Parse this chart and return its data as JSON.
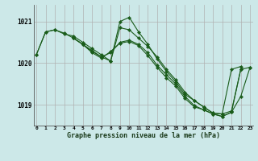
{
  "title": "Graphe pression niveau de la mer (hPa)",
  "bg_color": "#cce8e8",
  "grid_color": "#b0b0b0",
  "line_color": "#1a5c1a",
  "marker_color": "#1a5c1a",
  "xlim": [
    -0.3,
    23.3
  ],
  "ylim": [
    1018.5,
    1021.4
  ],
  "yticks": [
    1019,
    1020,
    1021
  ],
  "xticks": [
    0,
    1,
    2,
    3,
    4,
    5,
    6,
    7,
    8,
    9,
    10,
    11,
    12,
    13,
    14,
    15,
    16,
    17,
    18,
    19,
    20,
    21,
    22,
    23
  ],
  "series": [
    {
      "x": [
        0,
        1,
        2,
        3,
        4,
        5,
        6,
        7,
        8,
        9,
        10,
        11,
        12,
        13,
        14,
        15,
        16,
        17,
        18,
        19,
        20,
        21,
        22
      ],
      "y": [
        1020.2,
        1020.75,
        1020.8,
        1020.7,
        1020.65,
        1020.5,
        1020.35,
        1020.2,
        1020.05,
        1021.0,
        1021.1,
        1020.75,
        1020.45,
        1020.1,
        1019.8,
        1019.55,
        1019.25,
        1019.1,
        1018.95,
        1018.8,
        1018.78,
        1018.85,
        1019.85
      ]
    },
    {
      "x": [
        0,
        1,
        2,
        3,
        4,
        5,
        6,
        7,
        8,
        9,
        10,
        11,
        12,
        13,
        14,
        15,
        16,
        17,
        18,
        19,
        20,
        21,
        22
      ],
      "y": [
        1020.2,
        1020.75,
        1020.8,
        1020.72,
        1020.6,
        1020.45,
        1020.3,
        1020.15,
        1020.05,
        1020.85,
        1020.8,
        1020.6,
        1020.4,
        1020.15,
        1019.85,
        1019.6,
        1019.3,
        1019.1,
        1018.95,
        1018.8,
        1018.78,
        1019.85,
        1019.92
      ]
    },
    {
      "x": [
        4,
        5,
        6,
        7,
        8,
        9,
        10,
        11,
        12,
        13,
        14,
        15,
        16,
        17,
        18,
        19,
        20,
        21,
        22,
        23
      ],
      "y": [
        1020.6,
        1020.45,
        1020.28,
        1020.15,
        1020.25,
        1020.5,
        1020.55,
        1020.45,
        1020.25,
        1019.95,
        1019.72,
        1019.5,
        1019.2,
        1018.98,
        1018.88,
        1018.78,
        1018.72,
        1018.82,
        1019.85,
        1019.9
      ]
    },
    {
      "x": [
        4,
        5,
        6,
        7,
        8,
        9,
        10,
        11,
        12,
        13,
        14,
        15,
        16,
        17,
        18,
        19,
        20,
        21,
        22,
        23
      ],
      "y": [
        1020.6,
        1020.45,
        1020.25,
        1020.12,
        1020.28,
        1020.48,
        1020.52,
        1020.42,
        1020.18,
        1019.9,
        1019.65,
        1019.45,
        1019.15,
        1018.95,
        1018.88,
        1018.78,
        1018.72,
        1018.82,
        1019.2,
        1019.9
      ]
    }
  ]
}
